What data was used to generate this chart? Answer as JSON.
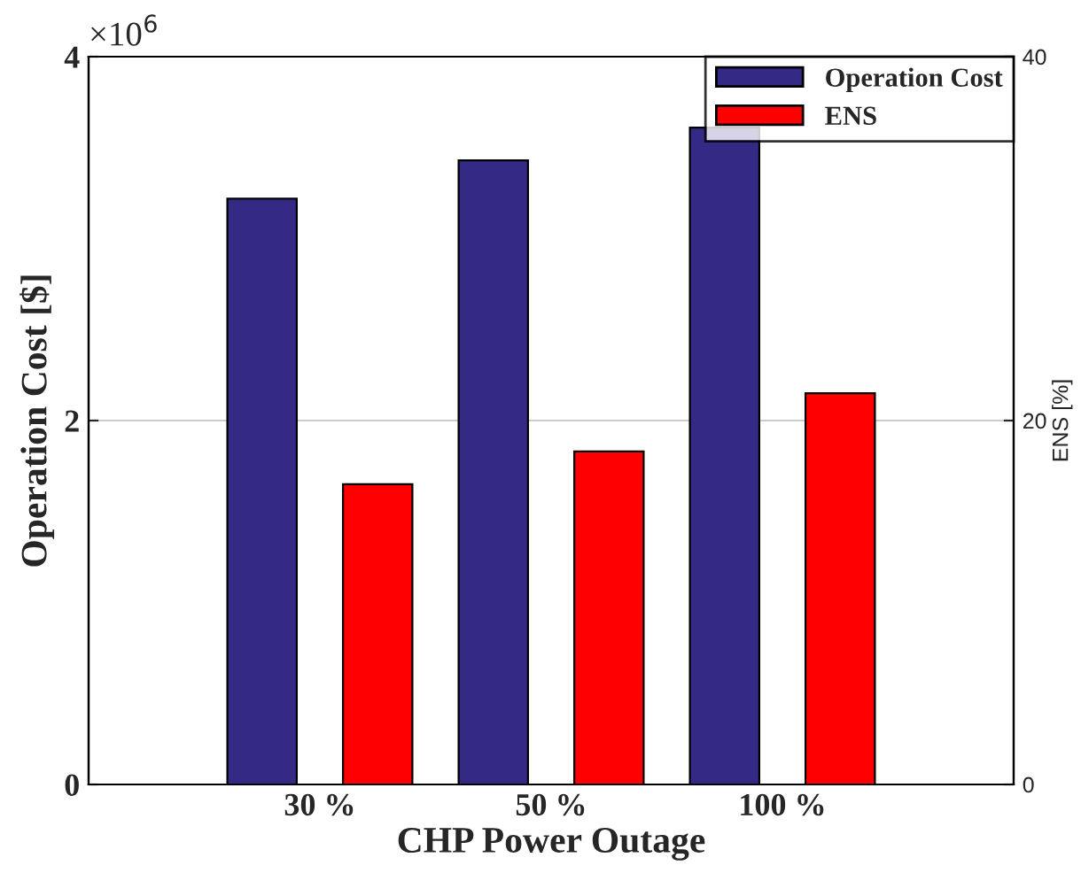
{
  "chart_data": {
    "type": "bar",
    "xlabel": "CHP Power Outage",
    "ylabel": "Operation Cost [$]",
    "y2label": "ENS [%]",
    "categories": [
      "30 %",
      "50 %",
      "100 %"
    ],
    "series": [
      {
        "name": "Operation Cost",
        "color": "#342a86",
        "values": [
          3.22,
          3.43,
          3.61
        ]
      },
      {
        "name": "ENS",
        "color": "#ff0000",
        "values": [
          16.5,
          18.3,
          21.5
        ],
        "axis": "y2"
      }
    ],
    "ylim": [
      0,
      4
    ],
    "yticks": [
      0,
      2,
      4
    ],
    "y2lim": [
      0,
      40
    ],
    "y2ticks": [
      0,
      20,
      40
    ],
    "annotations": [
      "×10$^{6}$"
    ],
    "grid": "y",
    "legend": "top right"
  }
}
